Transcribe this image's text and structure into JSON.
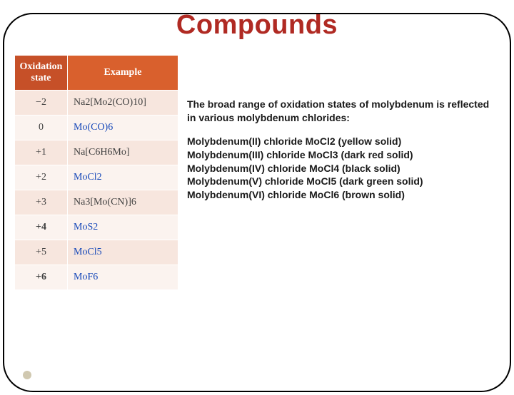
{
  "title_text": "Compounds",
  "title_color": "#b02a23",
  "table": {
    "header_bg_0": "#c65028",
    "header_bg_1": "#d9602d",
    "header_text_color": "#ffffff",
    "row_bg_even": "#f7e6de",
    "row_bg_odd": "#fbf3ef",
    "link_color": "#1446b8",
    "columns": [
      "Oxidation state",
      "Example"
    ],
    "rows": [
      {
        "state": "−2",
        "example": "Na2[Mo2(CO)10]",
        "link": false,
        "bold": false
      },
      {
        "state": "0",
        "example": "Mo(CO)6",
        "link": true,
        "bold": false
      },
      {
        "state": "+1",
        "example": "Na[C6H6Mo]",
        "link": false,
        "bold": false
      },
      {
        "state": "+2",
        "example": "MoCl2",
        "link": true,
        "bold": false
      },
      {
        "state": "+3",
        "example": "Na3[Mo(CN)]6",
        "link": false,
        "bold": false
      },
      {
        "state": "+4",
        "example": "MoS2",
        "link": true,
        "bold": true
      },
      {
        "state": "+5",
        "example": "MoCl5",
        "link": true,
        "bold": false
      },
      {
        "state": "+6",
        "example": "MoF6",
        "link": true,
        "bold": true
      }
    ]
  },
  "body": {
    "intro": "The broad range of oxidation states of molybdenum is reflected in various molybdenum chlorides:",
    "lines": [
      "Molybdenum(II) chloride MoCl2 (yellow solid)",
      "Molybdenum(III) chloride MoCl3 (dark red solid)",
      "Molybdenum(IV) chloride MoCl4 (black solid)",
      "Molybdenum(V) chloride MoCl5 (dark green solid)",
      "Molybdenum(VI) chloride MoCl6 (brown solid)"
    ]
  },
  "frame_border_color": "#000000",
  "background_color": "#ffffff"
}
